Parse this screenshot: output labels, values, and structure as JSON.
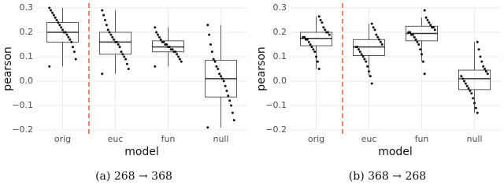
{
  "chart_data": [
    {
      "type": "box",
      "xlabel": "model",
      "ylabel": "pearson",
      "caption": "(a) 268 → 368",
      "categories": [
        "orig",
        "euc",
        "fun",
        "null"
      ],
      "ylim": [
        -0.2,
        0.3
      ],
      "yticks": [
        {
          "value": -0.2,
          "label": "−0.2"
        },
        {
          "value": -0.1,
          "label": "−0.1"
        },
        {
          "value": 0,
          "label": "0.0"
        },
        0.1,
        0.2,
        0.3
      ],
      "grid": true,
      "divider_color": "#e4603f",
      "point_color": "#111111",
      "box_color": "#333333",
      "boxes": [
        {
          "q1": 0.16,
          "median": 0.2,
          "q3": 0.24,
          "low": 0.06,
          "high": 0.3,
          "points": [
            0.06,
            0.09,
            0.12,
            0.14,
            0.16,
            0.17,
            0.18,
            0.19,
            0.2,
            0.2,
            0.21,
            0.22,
            0.23,
            0.24,
            0.25,
            0.26,
            0.27,
            0.28,
            0.29,
            0.3
          ]
        },
        {
          "q1": 0.11,
          "median": 0.16,
          "q3": 0.2,
          "low": 0.03,
          "high": 0.29,
          "points": [
            0.03,
            0.05,
            0.07,
            0.09,
            0.1,
            0.11,
            0.12,
            0.14,
            0.15,
            0.16,
            0.16,
            0.17,
            0.18,
            0.19,
            0.2,
            0.21,
            0.23,
            0.25,
            0.27,
            0.29
          ]
        },
        {
          "q1": 0.12,
          "median": 0.14,
          "q3": 0.165,
          "low": 0.06,
          "high": 0.22,
          "points": [
            0.06,
            0.08,
            0.09,
            0.1,
            0.11,
            0.12,
            0.12,
            0.13,
            0.13,
            0.14,
            0.14,
            0.15,
            0.15,
            0.16,
            0.16,
            0.17,
            0.18,
            0.19,
            0.2,
            0.22
          ]
        },
        {
          "q1": -0.065,
          "median": 0.01,
          "q3": 0.085,
          "low": -0.19,
          "high": 0.23,
          "points": [
            -0.19,
            -0.16,
            -0.13,
            -0.1,
            -0.08,
            -0.06,
            -0.04,
            -0.02,
            0,
            0.01,
            0.02,
            0.03,
            0.05,
            0.06,
            0.08,
            0.09,
            0.12,
            0.15,
            0.19,
            0.23
          ]
        }
      ]
    },
    {
      "type": "box",
      "xlabel": "model",
      "ylabel": "pearson",
      "caption": "(b) 368 → 268",
      "categories": [
        "orig",
        "euc",
        "fun",
        "null"
      ],
      "ylim": [
        -0.2,
        0.3
      ],
      "yticks": [
        {
          "value": -0.2,
          "label": "−0.2"
        },
        {
          "value": -0.1,
          "label": "−0.1"
        },
        {
          "value": 0,
          "label": "0.0"
        },
        0.1,
        0.2,
        0.3
      ],
      "grid": true,
      "divider_color": "#e4603f",
      "point_color": "#111111",
      "box_color": "#333333",
      "boxes": [
        {
          "q1": 0.145,
          "median": 0.175,
          "q3": 0.2,
          "low": 0.05,
          "high": 0.265,
          "points": [
            0.05,
            0.08,
            0.1,
            0.12,
            0.13,
            0.14,
            0.15,
            0.16,
            0.17,
            0.17,
            0.18,
            0.18,
            0.19,
            0.2,
            0.2,
            0.21,
            0.22,
            0.24,
            0.25,
            0.265
          ]
        },
        {
          "q1": 0.105,
          "median": 0.14,
          "q3": 0.17,
          "low": 0.02,
          "high": 0.235,
          "points": [
            -0.01,
            0.02,
            0.04,
            0.06,
            0.08,
            0.09,
            0.1,
            0.11,
            0.12,
            0.13,
            0.14,
            0.14,
            0.15,
            0.16,
            0.17,
            0.18,
            0.19,
            0.21,
            0.22,
            0.235
          ]
        },
        {
          "q1": 0.165,
          "median": 0.195,
          "q3": 0.225,
          "low": 0.08,
          "high": 0.26,
          "points": [
            0.03,
            0.08,
            0.11,
            0.13,
            0.15,
            0.16,
            0.17,
            0.18,
            0.19,
            0.19,
            0.2,
            0.2,
            0.21,
            0.22,
            0.22,
            0.23,
            0.24,
            0.25,
            0.26,
            0.29
          ]
        },
        {
          "q1": -0.035,
          "median": 0.01,
          "q3": 0.045,
          "low": -0.13,
          "high": 0.16,
          "points": [
            -0.13,
            -0.11,
            -0.09,
            -0.07,
            -0.05,
            -0.04,
            -0.03,
            -0.02,
            -0.01,
            0,
            0.01,
            0.02,
            0.03,
            0.04,
            0.05,
            0.06,
            0.08,
            0.1,
            0.13,
            0.16
          ]
        }
      ]
    }
  ]
}
